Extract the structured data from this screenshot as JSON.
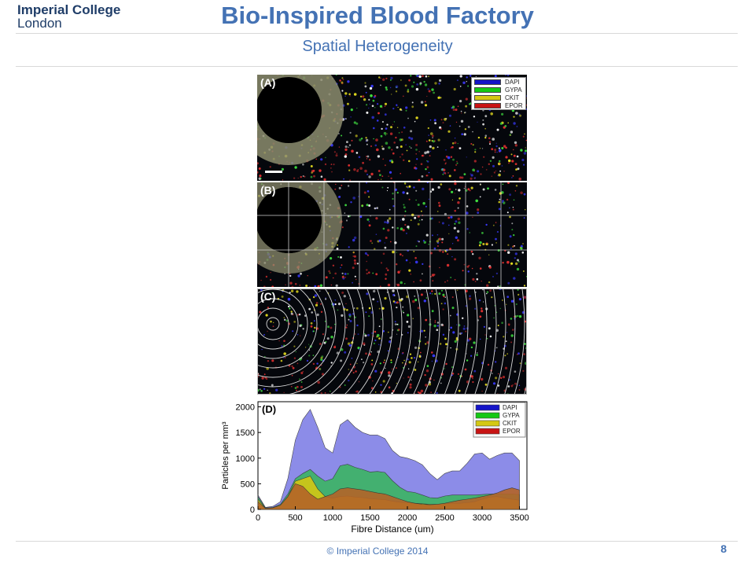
{
  "header": {
    "logo_line1": "Imperial College",
    "logo_line2": "London",
    "title": "Bio-Inspired Blood Factory",
    "subtitle": "Spatial Heterogeneity"
  },
  "panels": {
    "a_label": "(A)",
    "b_label": "(B)",
    "c_label": "(C)",
    "d_label": "(D)"
  },
  "legend": [
    {
      "label": "DAPI",
      "color": "#1414c8"
    },
    {
      "label": "GYPA",
      "color": "#14c814"
    },
    {
      "label": "CKIT",
      "color": "#d4c814"
    },
    {
      "label": "EPOR",
      "color": "#c81414"
    }
  ],
  "chart_data": {
    "type": "area",
    "xlabel": "Fibre Distance (um)",
    "ylabel": "Particles per mm³",
    "xlim": [
      0,
      3600
    ],
    "ylim": [
      0,
      2100
    ],
    "xticks": [
      0,
      500,
      1000,
      1500,
      2000,
      2500,
      3000,
      3500
    ],
    "yticks": [
      0,
      500,
      1000,
      1500,
      2000
    ],
    "x": [
      0,
      100,
      200,
      300,
      400,
      500,
      600,
      700,
      800,
      900,
      1000,
      1100,
      1200,
      1300,
      1400,
      1500,
      1600,
      1700,
      1800,
      1900,
      2000,
      2100,
      2200,
      2300,
      2400,
      2500,
      2600,
      2700,
      2800,
      2900,
      3000,
      3100,
      3200,
      3300,
      3400,
      3500
    ],
    "series": [
      {
        "name": "DAPI",
        "color": "#8080e6",
        "values": [
          280,
          40,
          60,
          150,
          600,
          1350,
          1750,
          1950,
          1600,
          1200,
          1100,
          1650,
          1750,
          1600,
          1500,
          1450,
          1450,
          1380,
          1150,
          1030,
          1000,
          950,
          870,
          700,
          580,
          700,
          750,
          750,
          900,
          1080,
          1100,
          980,
          1050,
          1100,
          1100,
          950
        ]
      },
      {
        "name": "GYPA",
        "color": "#3cb464",
        "values": [
          250,
          30,
          40,
          100,
          300,
          600,
          700,
          780,
          650,
          550,
          600,
          850,
          880,
          820,
          780,
          730,
          740,
          720,
          560,
          430,
          350,
          330,
          280,
          230,
          220,
          260,
          280,
          280,
          280,
          280,
          290,
          300,
          300,
          300,
          300,
          290
        ]
      },
      {
        "name": "CKIT",
        "color": "#d4c814",
        "values": [
          200,
          20,
          30,
          80,
          250,
          550,
          600,
          650,
          400,
          250,
          220,
          250,
          260,
          240,
          230,
          210,
          200,
          190,
          160,
          140,
          130,
          120,
          110,
          100,
          100,
          110,
          120,
          120,
          130,
          150,
          200,
          240,
          250,
          220,
          200,
          180
        ]
      },
      {
        "name": "EPOR",
        "color": "#b46428",
        "values": [
          150,
          20,
          30,
          80,
          250,
          500,
          450,
          300,
          200,
          250,
          300,
          400,
          420,
          400,
          380,
          350,
          320,
          300,
          250,
          200,
          150,
          120,
          100,
          90,
          100,
          120,
          150,
          180,
          200,
          220,
          250,
          280,
          320,
          380,
          420,
          380
        ]
      }
    ]
  },
  "footer": {
    "copyright": "© Imperial College 2014",
    "page": "8"
  }
}
